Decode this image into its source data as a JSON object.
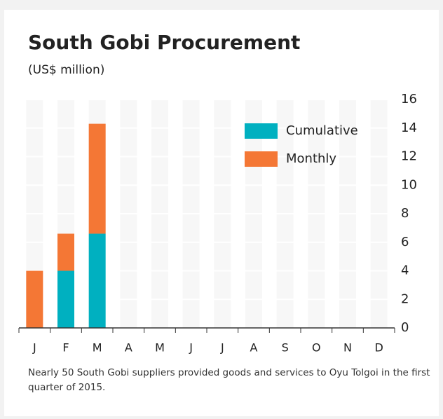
{
  "chart_data": {
    "type": "bar",
    "stacked": true,
    "title": "South Gobi Procurement",
    "subtitle": "(US$ million)",
    "categories": [
      "J",
      "F",
      "M",
      "A",
      "M",
      "J",
      "J",
      "A",
      "S",
      "O",
      "N",
      "D"
    ],
    "series": [
      {
        "name": "Cumulative",
        "color": "#00b0c0",
        "values": [
          0,
          4,
          6.6,
          null,
          null,
          null,
          null,
          null,
          null,
          null,
          null,
          null
        ]
      },
      {
        "name": "Monthly",
        "color": "#f47735",
        "values": [
          4,
          2.6,
          7.7,
          null,
          null,
          null,
          null,
          null,
          null,
          null,
          null,
          null
        ]
      }
    ],
    "ylim": [
      0,
      16
    ],
    "yticks": [
      0,
      2,
      4,
      6,
      8,
      10,
      12,
      14,
      16
    ],
    "grid": true,
    "note": "Nearly 50 South Gobi suppliers provided goods and services to Oyu Tolgoi in the first quarter of 2015."
  }
}
